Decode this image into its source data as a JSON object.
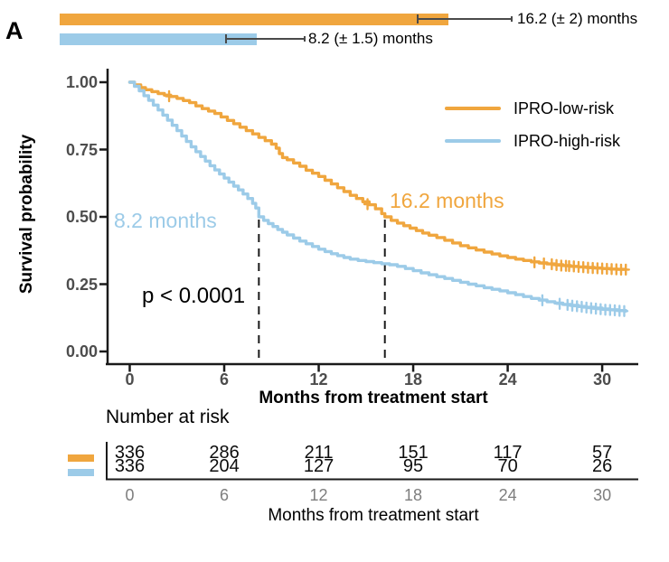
{
  "panel_label": "A",
  "top_bars": {
    "bars": [
      {
        "group": "IPRO-low-risk",
        "label": "16.2 (± 2) months",
        "value_months": 16.2,
        "error_months": 2,
        "color": "#F0A63E"
      },
      {
        "group": "IPRO-high-risk",
        "label": "8.2 (± 1.5) months",
        "value_months": 8.2,
        "error_months": 1.5,
        "color": "#9CCBE8"
      }
    ]
  },
  "chart_data": {
    "type": "line",
    "subtype": "kaplan-meier-step",
    "xlabel": "Months from treatment start",
    "ylabel": "Survival probability",
    "xlim": [
      0,
      31.5
    ],
    "ylim": [
      0,
      1
    ],
    "x_ticks": [
      0,
      6,
      12,
      18,
      24,
      30
    ],
    "y_ticks": [
      1.0,
      0.75,
      0.5,
      0.25,
      0.0
    ],
    "y_tick_labels": [
      "1.00",
      "0.75",
      "0.50",
      "0.25",
      "0.00"
    ],
    "grid": false,
    "legend": {
      "position": "top-right",
      "entries": [
        {
          "label": "IPRO-low-risk",
          "color": "#F0A63E"
        },
        {
          "label": "IPRO-high-risk",
          "color": "#9CCBE8"
        }
      ]
    },
    "median_lines_months": [
      8.2,
      16.2
    ],
    "annotations": {
      "median_high": {
        "text": "8.2 months",
        "color": "#9CCBE8"
      },
      "median_low": {
        "text": "16.2 months",
        "color": "#F0A63E"
      },
      "p_value": {
        "text": "p < 0.0001",
        "color": "#000000"
      }
    },
    "series": [
      {
        "name": "IPRO-low-risk",
        "color": "#F0A63E",
        "median_months": 16.2,
        "points": [
          [
            0,
            1.0
          ],
          [
            0.3,
            0.99
          ],
          [
            0.7,
            0.98
          ],
          [
            1,
            0.972
          ],
          [
            1.4,
            0.965
          ],
          [
            1.8,
            0.958
          ],
          [
            2.2,
            0.952
          ],
          [
            2.6,
            0.947
          ],
          [
            3,
            0.94
          ],
          [
            3.4,
            0.932
          ],
          [
            3.8,
            0.924
          ],
          [
            4.2,
            0.912
          ],
          [
            4.6,
            0.902
          ],
          [
            5,
            0.893
          ],
          [
            5.4,
            0.884
          ],
          [
            5.8,
            0.871
          ],
          [
            6.2,
            0.858
          ],
          [
            6.6,
            0.846
          ],
          [
            7,
            0.833
          ],
          [
            7.4,
            0.82
          ],
          [
            7.8,
            0.808
          ],
          [
            8.2,
            0.795
          ],
          [
            8.6,
            0.783
          ],
          [
            9,
            0.77
          ],
          [
            9.3,
            0.755
          ],
          [
            9.5,
            0.735
          ],
          [
            9.7,
            0.72
          ],
          [
            10,
            0.712
          ],
          [
            10.4,
            0.7
          ],
          [
            10.8,
            0.688
          ],
          [
            11.2,
            0.673
          ],
          [
            11.6,
            0.662
          ],
          [
            12,
            0.65
          ],
          [
            12.4,
            0.636
          ],
          [
            12.8,
            0.622
          ],
          [
            13.2,
            0.608
          ],
          [
            13.6,
            0.594
          ],
          [
            14,
            0.58
          ],
          [
            14.4,
            0.568
          ],
          [
            14.8,
            0.556
          ],
          [
            15.2,
            0.545
          ],
          [
            15.6,
            0.53
          ],
          [
            16,
            0.512
          ],
          [
            16.2,
            0.5
          ],
          [
            16.6,
            0.487
          ],
          [
            17,
            0.477
          ],
          [
            17.4,
            0.467
          ],
          [
            17.8,
            0.458
          ],
          [
            18.2,
            0.449
          ],
          [
            18.6,
            0.44
          ],
          [
            19,
            0.432
          ],
          [
            19.5,
            0.423
          ],
          [
            20,
            0.413
          ],
          [
            20.5,
            0.403
          ],
          [
            21,
            0.393
          ],
          [
            21.5,
            0.385
          ],
          [
            22,
            0.377
          ],
          [
            22.5,
            0.369
          ],
          [
            23,
            0.362
          ],
          [
            23.5,
            0.355
          ],
          [
            24,
            0.349
          ],
          [
            24.5,
            0.343
          ],
          [
            25,
            0.338
          ],
          [
            25.5,
            0.333
          ],
          [
            26,
            0.329
          ],
          [
            26.5,
            0.325
          ],
          [
            27,
            0.322
          ],
          [
            27.5,
            0.319
          ],
          [
            28,
            0.316
          ],
          [
            28.5,
            0.314
          ],
          [
            29,
            0.312
          ],
          [
            29.5,
            0.31
          ],
          [
            30,
            0.308
          ],
          [
            30.5,
            0.306
          ],
          [
            31,
            0.305
          ],
          [
            31.5,
            0.304
          ]
        ],
        "censor_marks": [
          [
            2.5,
            0.948
          ],
          [
            15.1,
            0.547
          ],
          [
            25.7,
            0.331
          ],
          [
            26.3,
            0.327
          ],
          [
            26.8,
            0.324
          ],
          [
            27.1,
            0.321
          ],
          [
            27.4,
            0.319
          ],
          [
            27.7,
            0.318
          ],
          [
            27.9,
            0.317
          ],
          [
            28.2,
            0.316
          ],
          [
            28.5,
            0.314
          ],
          [
            28.8,
            0.313
          ],
          [
            29.1,
            0.311
          ],
          [
            29.4,
            0.31
          ],
          [
            29.7,
            0.309
          ],
          [
            30,
            0.308
          ],
          [
            30.3,
            0.307
          ],
          [
            30.6,
            0.306
          ],
          [
            30.9,
            0.305
          ],
          [
            31.2,
            0.304
          ],
          [
            31.5,
            0.304
          ]
        ]
      },
      {
        "name": "IPRO-high-risk",
        "color": "#9CCBE8",
        "median_months": 8.2,
        "points": [
          [
            0,
            1.0
          ],
          [
            0.3,
            0.985
          ],
          [
            0.6,
            0.968
          ],
          [
            0.9,
            0.95
          ],
          [
            1.2,
            0.933
          ],
          [
            1.5,
            0.915
          ],
          [
            1.8,
            0.897
          ],
          [
            2.1,
            0.878
          ],
          [
            2.4,
            0.859
          ],
          [
            2.7,
            0.84
          ],
          [
            3,
            0.82
          ],
          [
            3.3,
            0.8
          ],
          [
            3.6,
            0.78
          ],
          [
            3.9,
            0.76
          ],
          [
            4.2,
            0.742
          ],
          [
            4.5,
            0.724
          ],
          [
            4.8,
            0.707
          ],
          [
            5.1,
            0.69
          ],
          [
            5.4,
            0.674
          ],
          [
            5.7,
            0.659
          ],
          [
            6,
            0.644
          ],
          [
            6.3,
            0.629
          ],
          [
            6.6,
            0.614
          ],
          [
            6.9,
            0.6
          ],
          [
            7.2,
            0.585
          ],
          [
            7.5,
            0.568
          ],
          [
            7.8,
            0.55
          ],
          [
            8,
            0.533
          ],
          [
            8.2,
            0.5
          ],
          [
            8.5,
            0.487
          ],
          [
            8.8,
            0.475
          ],
          [
            9.1,
            0.464
          ],
          [
            9.4,
            0.453
          ],
          [
            9.7,
            0.443
          ],
          [
            10,
            0.433
          ],
          [
            10.4,
            0.421
          ],
          [
            10.8,
            0.41
          ],
          [
            11.2,
            0.4
          ],
          [
            11.6,
            0.39
          ],
          [
            12,
            0.38
          ],
          [
            12.4,
            0.371
          ],
          [
            12.8,
            0.363
          ],
          [
            13.2,
            0.356
          ],
          [
            13.6,
            0.349
          ],
          [
            14,
            0.343
          ],
          [
            14.5,
            0.338
          ],
          [
            15,
            0.334
          ],
          [
            15.5,
            0.33
          ],
          [
            16,
            0.326
          ],
          [
            16.5,
            0.322
          ],
          [
            17,
            0.316
          ],
          [
            17.5,
            0.308
          ],
          [
            18,
            0.3
          ],
          [
            18.5,
            0.292
          ],
          [
            19,
            0.285
          ],
          [
            19.5,
            0.278
          ],
          [
            20,
            0.271
          ],
          [
            20.5,
            0.264
          ],
          [
            21,
            0.257
          ],
          [
            21.5,
            0.25
          ],
          [
            22,
            0.244
          ],
          [
            22.5,
            0.237
          ],
          [
            23,
            0.231
          ],
          [
            23.5,
            0.225
          ],
          [
            24,
            0.218
          ],
          [
            24.5,
            0.211
          ],
          [
            25,
            0.204
          ],
          [
            25.5,
            0.197
          ],
          [
            26,
            0.191
          ],
          [
            26.5,
            0.185
          ],
          [
            27,
            0.18
          ],
          [
            27.5,
            0.175
          ],
          [
            28,
            0.171
          ],
          [
            28.5,
            0.167
          ],
          [
            29,
            0.164
          ],
          [
            29.5,
            0.161
          ],
          [
            30,
            0.158
          ],
          [
            30.5,
            0.155
          ],
          [
            31,
            0.152
          ],
          [
            31.5,
            0.15
          ]
        ],
        "censor_marks": [
          [
            26.2,
            0.19
          ],
          [
            27.3,
            0.177
          ],
          [
            27.8,
            0.173
          ],
          [
            28.1,
            0.17
          ],
          [
            28.4,
            0.168
          ],
          [
            28.7,
            0.166
          ],
          [
            29,
            0.163
          ],
          [
            29.3,
            0.161
          ],
          [
            29.6,
            0.159
          ],
          [
            29.9,
            0.157
          ],
          [
            30.2,
            0.155
          ],
          [
            30.5,
            0.154
          ],
          [
            30.8,
            0.153
          ],
          [
            31.1,
            0.151
          ],
          [
            31.4,
            0.15
          ]
        ]
      }
    ]
  },
  "risk_table": {
    "title": "Number at risk",
    "axis_label": "Months from treatment start",
    "timepoints": [
      0,
      6,
      12,
      18,
      24,
      30
    ],
    "rows": [
      {
        "group": "IPRO-low-risk",
        "color": "#F0A63E",
        "counts": [
          336,
          286,
          211,
          151,
          117,
          57
        ]
      },
      {
        "group": "IPRO-high-risk",
        "color": "#9CCBE8",
        "counts": [
          336,
          204,
          127,
          95,
          70,
          26
        ]
      }
    ]
  }
}
